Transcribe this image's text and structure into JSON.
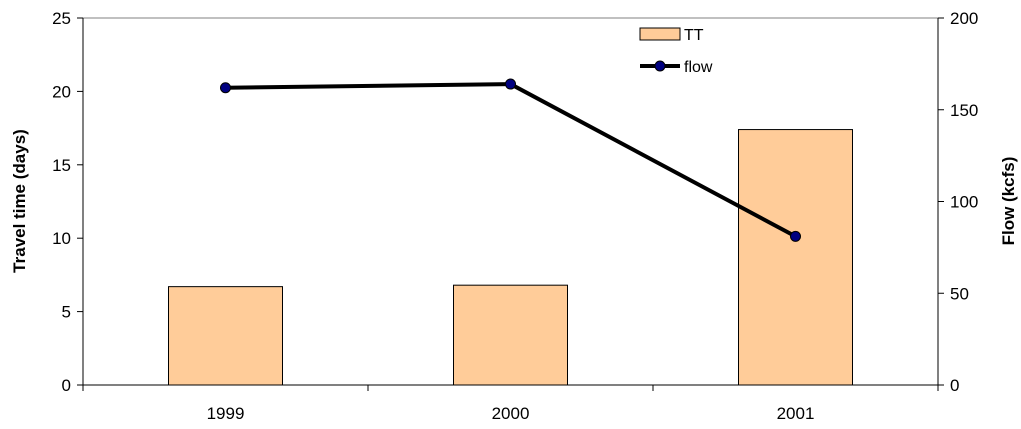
{
  "chart_data": {
    "type": "bar",
    "categories": [
      "1999",
      "2000",
      "2001"
    ],
    "series": [
      {
        "name": "TT",
        "type": "bar",
        "axis": "left",
        "values": [
          6.7,
          6.8,
          17.4
        ],
        "color": "#FFCC99"
      },
      {
        "name": "flow",
        "type": "line",
        "axis": "right",
        "values": [
          162,
          164,
          81
        ],
        "color": "#000000",
        "marker_color": "#000080"
      }
    ],
    "ylabel": "Travel time (days)",
    "y2label": "Flow (kcfs)",
    "ylim": [
      0,
      25
    ],
    "y2lim": [
      0,
      200
    ],
    "yticks": [
      "0",
      "5",
      "10",
      "15",
      "20",
      "25"
    ],
    "y2ticks": [
      "0",
      "50",
      "100",
      "150",
      "200"
    ],
    "grid": false,
    "legend_position": "top-center"
  }
}
